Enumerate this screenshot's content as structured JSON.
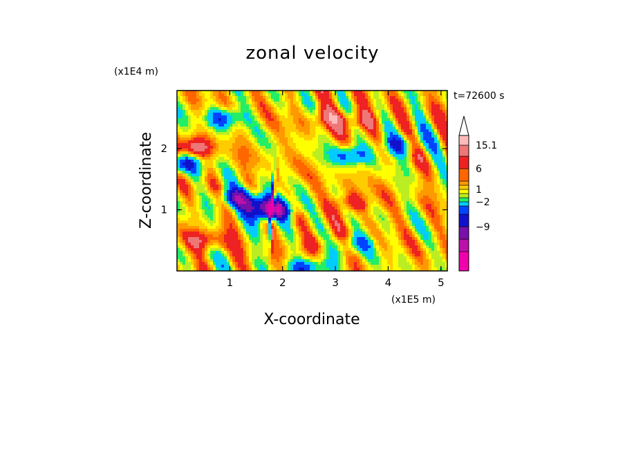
{
  "chart_data": {
    "type": "heatmap",
    "title": "zonal velocity",
    "xlabel": "X-coordinate",
    "ylabel": "Z-coordinate",
    "x_unit": "(x1E5 m)",
    "y_unit": "(x1E4 m)",
    "time_label": "t=72600 s",
    "xlim": [
      0,
      5.12
    ],
    "ylim": [
      0,
      2.95
    ],
    "x_ticks": [
      1,
      2,
      3,
      4,
      5
    ],
    "y_ticks": [
      1,
      2
    ],
    "x_tick_labels": [
      "1",
      "2",
      "3",
      "4",
      "5"
    ],
    "y_tick_labels": [
      "1",
      "2"
    ],
    "colorbar": {
      "levels_bottom_to_top": [
        {
          "color": "#ee00aa"
        },
        {
          "color": "#bb11aa"
        },
        {
          "color": "#7711aa"
        },
        {
          "color": "#1111cc"
        },
        {
          "color": "#0044ff"
        },
        {
          "color": "#00ccff"
        },
        {
          "color": "#22ee66"
        },
        {
          "color": "#bbee22"
        },
        {
          "color": "#ffff00"
        },
        {
          "color": "#ffcc00"
        },
        {
          "color": "#ff9900"
        },
        {
          "color": "#ff6600"
        },
        {
          "color": "#ee2222"
        },
        {
          "color": "#ee7777"
        },
        {
          "color": "#ffbbbb"
        }
      ],
      "tick_labels": [
        "15.1",
        "6",
        "1",
        "−2",
        "−9"
      ],
      "extend": "max"
    },
    "field_features": [
      {
        "x": 0.9,
        "z": 2.5,
        "value": -4
      },
      {
        "x": 0.3,
        "z": 2.0,
        "value": 4
      },
      {
        "x": 0.1,
        "z": 1.75,
        "value": -5
      },
      {
        "x": 1.1,
        "z": 1.2,
        "value": -5
      },
      {
        "x": 1.5,
        "z": 1.12,
        "value": -4
      },
      {
        "x": 2.9,
        "z": 2.5,
        "value": 3
      },
      {
        "x": 3.5,
        "z": 2.45,
        "value": 3
      },
      {
        "x": 3.3,
        "z": 1.9,
        "value": -4
      },
      {
        "x": 4.2,
        "z": 2.05,
        "value": -4
      },
      {
        "x": 3.3,
        "z": 1.1,
        "value": 3
      },
      {
        "x": 2.7,
        "z": 0.45,
        "value": 2
      },
      {
        "x": 3.4,
        "z": 0.45,
        "value": -3
      },
      {
        "x": 2.5,
        "z": 0.05,
        "value": -5
      },
      {
        "x": 0.5,
        "z": 0.5,
        "value": 3
      },
      {
        "x": 1.8,
        "z": 1.0,
        "value": -10
      }
    ]
  }
}
